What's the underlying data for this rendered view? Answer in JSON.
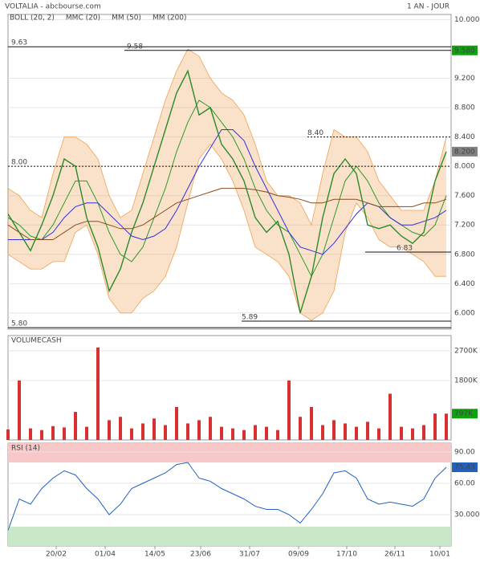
{
  "chart_data": [
    {
      "type": "price",
      "title": "VOLTALIA - abcbourse.com",
      "period": "1 AN - JOUR",
      "x": [
        0,
        14,
        28,
        42,
        56,
        70,
        84,
        98,
        112,
        126,
        140,
        154,
        168,
        182,
        196,
        210,
        224,
        238,
        252,
        266,
        280,
        294,
        308,
        322,
        336,
        350,
        364,
        378,
        392,
        406,
        420,
        434,
        448,
        462,
        476,
        490,
        504,
        518,
        532,
        546
      ],
      "xlim": [
        0,
        552
      ],
      "values": [
        7.35,
        7.1,
        6.85,
        7.2,
        7.6,
        8.1,
        8.0,
        7.3,
        6.9,
        6.3,
        6.6,
        7.1,
        7.5,
        8.0,
        8.5,
        9.0,
        9.3,
        8.7,
        8.8,
        8.3,
        8.1,
        7.8,
        7.3,
        7.1,
        7.25,
        6.8,
        6.0,
        6.5,
        7.3,
        7.9,
        8.1,
        7.9,
        7.2,
        7.15,
        7.2,
        7.05,
        6.95,
        7.1,
        7.8,
        8.2
      ],
      "color": "#2a8a2a",
      "series": [
        {
          "name": "BOLL (20, 2)",
          "color": "#f0a050",
          "upper": [
            7.7,
            7.6,
            7.4,
            7.3,
            7.9,
            8.4,
            8.4,
            8.3,
            8.1,
            7.6,
            7.3,
            7.4,
            7.9,
            8.4,
            8.9,
            9.3,
            9.6,
            9.5,
            9.2,
            9.0,
            8.9,
            8.7,
            8.3,
            7.8,
            7.6,
            7.6,
            7.5,
            7.2,
            7.9,
            8.5,
            8.4,
            8.4,
            8.2,
            7.8,
            7.6,
            7.4,
            7.4,
            7.4,
            7.8,
            8.4
          ],
          "lower": [
            6.8,
            6.7,
            6.6,
            6.6,
            6.7,
            6.7,
            7.1,
            7.2,
            6.8,
            6.2,
            6.0,
            6.0,
            6.2,
            6.3,
            6.5,
            6.9,
            7.5,
            8.1,
            8.3,
            8.1,
            7.8,
            7.4,
            6.9,
            6.8,
            6.7,
            6.5,
            6.0,
            5.9,
            6.0,
            6.3,
            7.1,
            7.5,
            7.3,
            7.0,
            6.9,
            6.9,
            6.8,
            6.7,
            6.5,
            6.5
          ]
        },
        {
          "name": "MMC (20)",
          "color": "#2a9a2a",
          "values": [
            7.3,
            7.2,
            7.05,
            7.0,
            7.2,
            7.5,
            7.8,
            7.8,
            7.5,
            7.1,
            6.8,
            6.7,
            6.9,
            7.3,
            7.7,
            8.2,
            8.6,
            8.9,
            8.8,
            8.6,
            8.4,
            8.1,
            7.7,
            7.4,
            7.2,
            7.1,
            6.8,
            6.5,
            6.8,
            7.3,
            7.8,
            8.0,
            7.8,
            7.5,
            7.3,
            7.2,
            7.1,
            7.05,
            7.2,
            7.6
          ]
        },
        {
          "name": "MM (50)",
          "color": "#3030e0",
          "values": [
            7.0,
            7.0,
            7.0,
            7.0,
            7.1,
            7.3,
            7.45,
            7.5,
            7.5,
            7.35,
            7.2,
            7.05,
            7.0,
            7.05,
            7.15,
            7.4,
            7.7,
            8.0,
            8.25,
            8.5,
            8.5,
            8.35,
            8.0,
            7.7,
            7.4,
            7.1,
            6.9,
            6.85,
            6.8,
            6.95,
            7.15,
            7.35,
            7.5,
            7.45,
            7.3,
            7.2,
            7.2,
            7.25,
            7.3,
            7.4
          ]
        },
        {
          "name": "MM (200)",
          "color": "#8b4a1a",
          "values": [
            7.2,
            7.1,
            7.0,
            7.0,
            7.0,
            7.1,
            7.2,
            7.25,
            7.25,
            7.2,
            7.15,
            7.15,
            7.2,
            7.3,
            7.4,
            7.5,
            7.55,
            7.6,
            7.65,
            7.7,
            7.7,
            7.7,
            7.68,
            7.65,
            7.6,
            7.58,
            7.55,
            7.5,
            7.5,
            7.55,
            7.55,
            7.55,
            7.5,
            7.45,
            7.45,
            7.45,
            7.45,
            7.5,
            7.5,
            7.55
          ]
        }
      ],
      "ylim": [
        5.78,
        10.07
      ],
      "yticks": [
        {
          "value": 10,
          "label": "10.000"
        },
        {
          "value": 9.2,
          "label": "9.200"
        },
        {
          "value": 8.8,
          "label": "8.800"
        },
        {
          "value": 8.4,
          "label": "8.400"
        },
        {
          "value": 8,
          "label": "8.000"
        },
        {
          "value": 7.6,
          "label": "7.600"
        },
        {
          "value": 7.2,
          "label": "7.200"
        },
        {
          "value": 6.8,
          "label": "6.800"
        },
        {
          "value": 6.4,
          "label": "6.400"
        },
        {
          "value": 6,
          "label": "6.000"
        }
      ],
      "levels": [
        9.63,
        9.58,
        {
          "value": 8.4,
          "label": "8.40"
        },
        {
          "value": 8,
          "label": "8.00"
        },
        6.83,
        5.89,
        {
          "value": 5.8,
          "label": "5.80"
        }
      ],
      "last": [
        {
          "value": 9.58,
          "label": "9.580",
          "color": "#10a010"
        },
        {
          "value": 8.2,
          "label": "8.200",
          "color": "#808080"
        }
      ]
    },
    {
      "type": "volume",
      "title": "VOLUMECASH",
      "x": [
        0,
        14,
        28,
        42,
        56,
        70,
        84,
        98,
        112,
        126,
        140,
        154,
        168,
        182,
        196,
        210,
        224,
        238,
        252,
        266,
        280,
        294,
        308,
        322,
        336,
        350,
        364,
        378,
        392,
        406,
        420,
        434,
        448,
        462,
        476,
        490,
        504,
        518,
        532,
        546
      ],
      "xlim": [
        0,
        552
      ],
      "values": [
        320000,
        1800000,
        350000,
        300000,
        420000,
        380000,
        850000,
        400000,
        2800000,
        600000,
        700000,
        350000,
        500000,
        650000,
        450000,
        1000000,
        500000,
        600000,
        700000,
        400000,
        350000,
        300000,
        450000,
        400000,
        300000,
        1800000,
        700000,
        1000000,
        450000,
        600000,
        500000,
        400000,
        550000,
        350000,
        1400000,
        400000,
        350000,
        450000,
        800000,
        797000
      ],
      "color": "#d83030",
      "ylim": [
        0,
        3160000
      ],
      "yticks": [
        {
          "value": 2700000,
          "label": "2700K"
        },
        {
          "value": 1800000,
          "label": "1800K"
        }
      ],
      "last": [
        {
          "value": 797000,
          "label": "797K",
          "color": "#10a010"
        }
      ]
    },
    {
      "type": "rsi",
      "title": "RSI (14)",
      "x": [
        0,
        14,
        28,
        42,
        56,
        70,
        84,
        98,
        112,
        126,
        140,
        154,
        168,
        182,
        196,
        210,
        224,
        238,
        252,
        266,
        280,
        294,
        308,
        322,
        336,
        350,
        364,
        378,
        392,
        406,
        420,
        434,
        448,
        462,
        476,
        490,
        504,
        518,
        532,
        546
      ],
      "xlim": [
        0,
        552
      ],
      "xticks": [
        {
          "value": 60,
          "label": "20/02"
        },
        {
          "value": 121,
          "label": "01/04"
        },
        {
          "value": 183,
          "label": "14/05"
        },
        {
          "value": 240,
          "label": "23/06"
        },
        {
          "value": 301,
          "label": "31/07"
        },
        {
          "value": 362,
          "label": "09/09"
        },
        {
          "value": 422,
          "label": "17/10"
        },
        {
          "value": 482,
          "label": "26/11"
        },
        {
          "value": 538,
          "label": "10/01"
        }
      ],
      "values": [
        15,
        45,
        40,
        55,
        65,
        72,
        68,
        55,
        45,
        30,
        40,
        55,
        60,
        65,
        70,
        78,
        80,
        65,
        62,
        55,
        50,
        45,
        38,
        35,
        35,
        30,
        22,
        35,
        50,
        70,
        72,
        65,
        45,
        40,
        42,
        40,
        38,
        45,
        65,
        75.43
      ],
      "color": "#2060c0",
      "ylim": [
        0,
        98.5
      ],
      "yticks": [
        {
          "value": 90,
          "label": "90.00"
        },
        {
          "value": 60,
          "label": "60.00"
        },
        {
          "value": 30,
          "label": "30.000"
        }
      ],
      "zones": [
        {
          "from": 80,
          "to": 98.5,
          "color": "#f8c8c8"
        },
        {
          "from": 0,
          "to": 18.5,
          "color": "#c8e8c8"
        }
      ],
      "last": [
        {
          "value": 75.43,
          "label": "75.43",
          "color": "#2060c0"
        }
      ]
    }
  ]
}
